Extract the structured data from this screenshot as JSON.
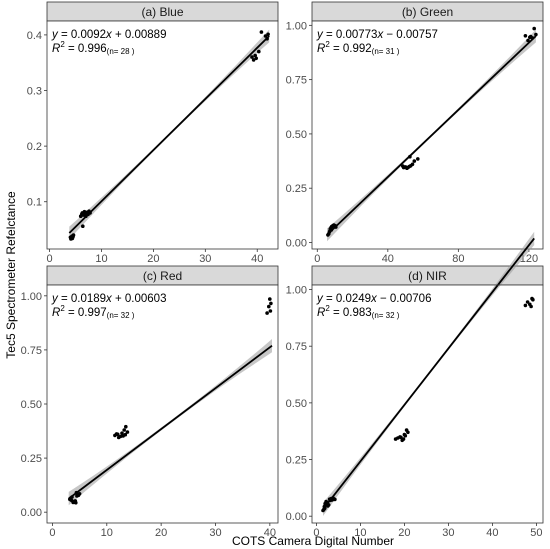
{
  "figure": {
    "xlabel": "COTS Camera Digital Number",
    "ylabel": "Tec5 Spectrometer Refelctance"
  },
  "chart_data": [
    {
      "type": "scatter",
      "title": "(a) Blue",
      "equation": {
        "y": "y",
        "slope": "0.0092",
        "x": "x",
        "sign": "+",
        "intercept": "0.00889"
      },
      "r2": {
        "label": "R",
        "sup": "2",
        "value": "= 0.996",
        "n": "(n= 28 )"
      },
      "fit": {
        "slope": 0.0092,
        "intercept": 0.00889,
        "x_range": [
          3.8,
          42.3
        ]
      },
      "xlim": [
        -0.5,
        44
      ],
      "ylim": [
        0.015,
        0.425
      ],
      "x_ticks": [
        0,
        10,
        20,
        30,
        40
      ],
      "x_tick_labels": [
        "0",
        "10",
        "20",
        "30",
        "40"
      ],
      "y_ticks": [
        0.1,
        0.2,
        0.3,
        0.4
      ],
      "y_tick_labels": [
        "0.1",
        "0.2",
        "0.3",
        "0.4"
      ],
      "points": [
        [
          4.0,
          0.036
        ],
        [
          4.1,
          0.033
        ],
        [
          4.2,
          0.035
        ],
        [
          4.3,
          0.038
        ],
        [
          4.4,
          0.034
        ],
        [
          4.5,
          0.037
        ],
        [
          4.6,
          0.04
        ],
        [
          6.0,
          0.074
        ],
        [
          6.2,
          0.078
        ],
        [
          6.3,
          0.08
        ],
        [
          6.5,
          0.076
        ],
        [
          6.7,
          0.082
        ],
        [
          6.9,
          0.079
        ],
        [
          7.0,
          0.074
        ],
        [
          7.2,
          0.081
        ],
        [
          7.4,
          0.077
        ],
        [
          7.6,
          0.083
        ],
        [
          7.8,
          0.08
        ],
        [
          6.4,
          0.056
        ],
        [
          39.0,
          0.36
        ],
        [
          39.3,
          0.355
        ],
        [
          39.6,
          0.363
        ],
        [
          39.8,
          0.358
        ],
        [
          40.8,
          0.405
        ],
        [
          41.6,
          0.398
        ],
        [
          41.9,
          0.393
        ],
        [
          42.1,
          0.401
        ],
        [
          40.3,
          0.37
        ]
      ]
    },
    {
      "type": "scatter",
      "title": "(b) Green",
      "equation": {
        "y": "y",
        "slope": "0.00773",
        "x": "x",
        "sign": "−",
        "intercept": "0.00757"
      },
      "r2": {
        "label": "R",
        "sup": "2",
        "value": "= 0.992",
        "n": "(n= 31 )"
      },
      "fit": {
        "slope": 0.00773,
        "intercept": -0.00757,
        "x_range": [
          5.5,
          124
        ]
      },
      "xlim": [
        -3,
        128
      ],
      "ylim": [
        -0.03,
        1.02
      ],
      "x_ticks": [
        0,
        40,
        80,
        120
      ],
      "x_tick_labels": [
        "0",
        "40",
        "80",
        "120"
      ],
      "y_ticks": [
        0,
        0.25,
        0.5,
        0.75,
        1.0
      ],
      "y_tick_labels": [
        "0.00",
        "0.25",
        "0.50",
        "0.75",
        "1.00"
      ],
      "points": [
        [
          6.0,
          0.035
        ],
        [
          6.5,
          0.04
        ],
        [
          7.0,
          0.05
        ],
        [
          7.3,
          0.062
        ],
        [
          7.8,
          0.068
        ],
        [
          8.2,
          0.073
        ],
        [
          8.6,
          0.076
        ],
        [
          9.0,
          0.078
        ],
        [
          9.4,
          0.08
        ],
        [
          9.8,
          0.074
        ],
        [
          10.2,
          0.077
        ],
        [
          10.5,
          0.071
        ],
        [
          8.0,
          0.058
        ],
        [
          49.0,
          0.345
        ],
        [
          50.0,
          0.348
        ],
        [
          50.8,
          0.342
        ],
        [
          51.5,
          0.346
        ],
        [
          52.2,
          0.35
        ],
        [
          53.0,
          0.353
        ],
        [
          54.0,
          0.36
        ],
        [
          55.0,
          0.375
        ],
        [
          52.5,
          0.395
        ],
        [
          57.0,
          0.385
        ],
        [
          48.5,
          0.352
        ],
        [
          118.0,
          0.952
        ],
        [
          122.0,
          0.942
        ],
        [
          123.0,
          0.985
        ],
        [
          121.0,
          0.948
        ],
        [
          124.0,
          0.958
        ],
        [
          119.5,
          0.93
        ],
        [
          120.5,
          0.945
        ]
      ]
    },
    {
      "type": "scatter",
      "title": "(c) Red",
      "equation": {
        "y": "y",
        "slope": "0.0189",
        "x": "x",
        "sign": "+",
        "intercept": "0.00603"
      },
      "r2": {
        "label": "R",
        "sup": "2",
        "value": "= 0.997",
        "n": "(n= 32 )"
      },
      "fit": {
        "slope": 0.0189,
        "intercept": 0.00603,
        "x_range": [
          3.0,
          40.4
        ]
      },
      "xlim": [
        -1,
        41.5
      ],
      "ylim": [
        -0.05,
        1.05
      ],
      "x_ticks": [
        0,
        10,
        20,
        30,
        40
      ],
      "x_tick_labels": [
        "0",
        "10",
        "20",
        "30",
        "40"
      ],
      "y_ticks": [
        0,
        0.25,
        0.5,
        0.75,
        1.0
      ],
      "y_tick_labels": [
        "0.00",
        "0.25",
        "0.50",
        "0.75",
        "1.00"
      ],
      "points": [
        [
          3.2,
          0.06
        ],
        [
          3.4,
          0.065
        ],
        [
          3.6,
          0.07
        ],
        [
          3.8,
          0.045
        ],
        [
          3.9,
          0.048
        ],
        [
          4.0,
          0.05
        ],
        [
          4.1,
          0.046
        ],
        [
          4.2,
          0.052
        ],
        [
          4.3,
          0.044
        ],
        [
          4.5,
          0.075
        ],
        [
          4.6,
          0.08
        ],
        [
          4.8,
          0.078
        ],
        [
          5.0,
          0.085
        ],
        [
          3.5,
          0.055
        ],
        [
          4.4,
          0.09
        ],
        [
          3.3,
          0.058
        ],
        [
          11.5,
          0.355
        ],
        [
          12.0,
          0.36
        ],
        [
          12.5,
          0.35
        ],
        [
          12.8,
          0.365
        ],
        [
          13.0,
          0.352
        ],
        [
          13.2,
          0.38
        ],
        [
          13.5,
          0.395
        ],
        [
          12.2,
          0.345
        ],
        [
          13.8,
          0.37
        ],
        [
          11.8,
          0.362
        ],
        [
          13.4,
          0.358
        ],
        [
          39.5,
          0.92
        ],
        [
          40.0,
          0.985
        ],
        [
          40.2,
          0.965
        ],
        [
          39.8,
          0.95
        ],
        [
          40.1,
          0.93
        ]
      ]
    },
    {
      "type": "scatter",
      "title": "(d) NIR",
      "equation": {
        "y": "y",
        "slope": "0.0249",
        "x": "x",
        "sign": "−",
        "intercept": "0.00706"
      },
      "r2": {
        "label": "R",
        "sup": "2",
        "value": "= 0.983",
        "n": "(n= 32 )"
      },
      "fit": {
        "slope": 0.0249,
        "intercept": -0.00706,
        "x_range": [
          1.5,
          49.5
        ]
      },
      "xlim": [
        -1,
        51.5
      ],
      "ylim": [
        -0.03,
        1.02
      ],
      "x_ticks": [
        0,
        10,
        20,
        30,
        40,
        50
      ],
      "x_tick_labels": [
        "0",
        "10",
        "20",
        "30",
        "40",
        "50"
      ],
      "y_ticks": [
        0,
        0.25,
        0.5,
        0.75,
        1.0
      ],
      "y_tick_labels": [
        "0.00",
        "0.25",
        "0.50",
        "0.75",
        "1.00"
      ],
      "points": [
        [
          1.5,
          0.025
        ],
        [
          1.7,
          0.03
        ],
        [
          1.9,
          0.035
        ],
        [
          2.0,
          0.055
        ],
        [
          2.2,
          0.065
        ],
        [
          2.4,
          0.06
        ],
        [
          2.6,
          0.045
        ],
        [
          3.0,
          0.075
        ],
        [
          3.2,
          0.07
        ],
        [
          3.4,
          0.078
        ],
        [
          3.6,
          0.072
        ],
        [
          3.8,
          0.08
        ],
        [
          4.0,
          0.076
        ],
        [
          4.2,
          0.074
        ],
        [
          2.8,
          0.05
        ],
        [
          1.8,
          0.042
        ],
        [
          18.0,
          0.34
        ],
        [
          18.5,
          0.345
        ],
        [
          19.0,
          0.35
        ],
        [
          19.5,
          0.335
        ],
        [
          19.8,
          0.34
        ],
        [
          20.0,
          0.36
        ],
        [
          20.2,
          0.355
        ],
        [
          20.5,
          0.38
        ],
        [
          20.8,
          0.37
        ],
        [
          19.2,
          0.348
        ],
        [
          47.5,
          0.93
        ],
        [
          48.0,
          0.945
        ],
        [
          48.5,
          0.935
        ],
        [
          49.0,
          0.96
        ],
        [
          49.2,
          0.955
        ],
        [
          48.8,
          0.925
        ]
      ]
    }
  ]
}
